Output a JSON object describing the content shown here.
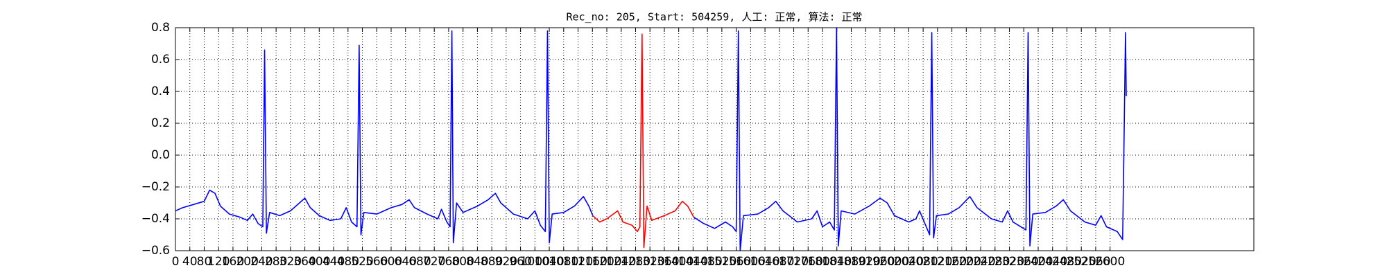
{
  "chart_data": {
    "type": "line",
    "title": "Rec_no: 205, Start: 504259, 人工: 正常, 算法: 正常",
    "xlim": [
      0,
      3000
    ],
    "ylim": [
      -0.6,
      0.8
    ],
    "xticks": [
      0,
      40,
      80,
      120,
      160,
      200,
      240,
      280,
      320,
      360,
      400,
      440,
      480,
      520,
      560,
      600,
      640,
      680,
      720,
      760,
      800,
      840,
      880,
      920,
      960,
      1000,
      1040,
      1080,
      1120,
      1160,
      1200,
      1240,
      1280,
      1320,
      1360,
      1400,
      1440,
      1480,
      1520,
      1560,
      1600,
      1640,
      1680,
      1720,
      1760,
      1800,
      1840,
      1880,
      1920,
      1960,
      2000,
      2040,
      2080,
      2120,
      2160,
      2200,
      2240,
      2280,
      2320,
      2360,
      2400,
      2440,
      2480,
      2520,
      2560,
      2600
    ],
    "yticks": [
      {
        "value": -0.6,
        "label": "−0.6"
      },
      {
        "value": -0.4,
        "label": "−0.4"
      },
      {
        "value": -0.2,
        "label": "−0.2"
      },
      {
        "value": 0,
        "label": "0.0"
      },
      0.2,
      0.4,
      0.6,
      0.8
    ],
    "grid": true,
    "series": [
      {
        "color": "#0000ff",
        "x": [
          0,
          20,
          50,
          80,
          95,
          110,
          125,
          150,
          180,
          200,
          215,
          230,
          243,
          248,
          253,
          262,
          290,
          320,
          345,
          360,
          375,
          400,
          430,
          460,
          475,
          490,
          505,
          511,
          516,
          524,
          560,
          600,
          630,
          650,
          665,
          700,
          730,
          740,
          755,
          764,
          769,
          773,
          782,
          800,
          840,
          870,
          890,
          905,
          940,
          980,
          1000,
          1015,
          1029,
          1035,
          1040,
          1048,
          1080,
          1110,
          1135,
          1150,
          1161
        ],
        "values": [
          -0.35,
          -0.33,
          -0.31,
          -0.29,
          -0.22,
          -0.24,
          -0.32,
          -0.37,
          -0.39,
          -0.41,
          -0.37,
          -0.43,
          -0.45,
          0.66,
          -0.49,
          -0.36,
          -0.38,
          -0.35,
          -0.3,
          -0.27,
          -0.33,
          -0.38,
          -0.41,
          -0.4,
          -0.33,
          -0.42,
          -0.45,
          0.69,
          -0.5,
          -0.36,
          -0.37,
          -0.33,
          -0.31,
          -0.28,
          -0.33,
          -0.37,
          -0.4,
          -0.34,
          -0.42,
          -0.45,
          0.78,
          -0.55,
          -0.3,
          -0.36,
          -0.32,
          -0.28,
          -0.24,
          -0.3,
          -0.37,
          -0.4,
          -0.35,
          -0.44,
          -0.48,
          0.78,
          -0.55,
          -0.37,
          -0.36,
          -0.32,
          -0.26,
          -0.32,
          -0.38
        ]
      },
      {
        "color": "#ff0000",
        "x": [
          1161,
          1180,
          1200,
          1230,
          1245,
          1270,
          1285,
          1292,
          1298,
          1303,
          1312,
          1325,
          1360,
          1390,
          1410,
          1425,
          1442
        ],
        "values": [
          -0.38,
          -0.42,
          -0.4,
          -0.35,
          -0.42,
          -0.44,
          -0.48,
          -0.45,
          0.76,
          -0.58,
          -0.32,
          -0.41,
          -0.38,
          -0.35,
          -0.29,
          -0.32,
          -0.39
        ]
      },
      {
        "color": "#0000ff",
        "x": [
          1442,
          1470,
          1500,
          1530,
          1550,
          1560,
          1566,
          1571,
          1580,
          1620,
          1650,
          1670,
          1690,
          1730,
          1770,
          1785,
          1800,
          1820,
          1833,
          1839,
          1844,
          1852,
          1890,
          1930,
          1960,
          1980,
          2000,
          2040,
          2060,
          2070,
          2085,
          2098,
          2104,
          2109,
          2117,
          2150,
          2180,
          2210,
          2230,
          2270,
          2300,
          2315,
          2330,
          2366,
          2372,
          2377,
          2385,
          2420,
          2450,
          2470,
          2490,
          2530,
          2560,
          2575,
          2590,
          2620,
          2635,
          2643,
          2645
        ],
        "values": [
          -0.39,
          -0.43,
          -0.46,
          -0.42,
          -0.45,
          -0.48,
          0.78,
          -0.6,
          -0.38,
          -0.37,
          -0.33,
          -0.29,
          -0.35,
          -0.42,
          -0.4,
          -0.35,
          -0.45,
          -0.42,
          -0.47,
          0.8,
          -0.57,
          -0.35,
          -0.37,
          -0.32,
          -0.27,
          -0.3,
          -0.38,
          -0.42,
          -0.4,
          -0.35,
          -0.43,
          -0.5,
          0.77,
          -0.52,
          -0.38,
          -0.37,
          -0.33,
          -0.26,
          -0.33,
          -0.4,
          -0.42,
          -0.35,
          -0.42,
          -0.47,
          0.77,
          -0.57,
          -0.37,
          -0.36,
          -0.32,
          -0.28,
          -0.35,
          -0.42,
          -0.44,
          -0.38,
          -0.45,
          -0.48,
          -0.53,
          0.77,
          0.37
        ]
      }
    ]
  }
}
